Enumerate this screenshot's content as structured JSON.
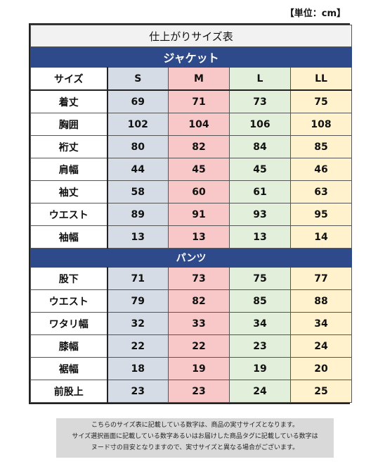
{
  "unit_label": "【単位：cm】",
  "title": "仕上がりサイズ表",
  "jacket": {
    "section_label": "ジャケット",
    "header": [
      "サイズ",
      "S",
      "M",
      "L",
      "LL"
    ],
    "rows": [
      {
        "label": "着丈",
        "values": [
          "69",
          "71",
          "73",
          "75"
        ]
      },
      {
        "label": "胸囲",
        "values": [
          "102",
          "104",
          "106",
          "108"
        ]
      },
      {
        "label": "裄丈",
        "values": [
          "80",
          "82",
          "84",
          "85"
        ]
      },
      {
        "label": "肩幅",
        "values": [
          "44",
          "45",
          "45",
          "46"
        ]
      },
      {
        "label": "袖丈",
        "values": [
          "58",
          "60",
          "61",
          "63"
        ]
      },
      {
        "label": "ウエスト",
        "values": [
          "89",
          "91",
          "93",
          "95"
        ]
      },
      {
        "label": "袖幅",
        "values": [
          "13",
          "13",
          "13",
          "14"
        ]
      }
    ]
  },
  "pants": {
    "section_label": "パンツ",
    "rows": [
      {
        "label": "股下",
        "values": [
          "71",
          "73",
          "75",
          "77"
        ]
      },
      {
        "label": "ウエスト",
        "values": [
          "79",
          "82",
          "85",
          "88"
        ]
      },
      {
        "label": "ワタリ幅",
        "values": [
          "32",
          "33",
          "34",
          "34"
        ]
      },
      {
        "label": "膝幅",
        "values": [
          "22",
          "22",
          "23",
          "24"
        ]
      },
      {
        "label": "裾幅",
        "values": [
          "18",
          "19",
          "19",
          "20"
        ]
      },
      {
        "label": "前股上",
        "values": [
          "23",
          "23",
          "24",
          "25"
        ]
      }
    ]
  },
  "note_lines": [
    "こちらのサイズ表に記載している数字は、商品の実寸サイズとなります。",
    "サイズ選択画面に記載している数字あるいはお届けした商品タグに記載している数字は",
    "ヌード寸の目安となりますので、実寸サイズと異なる場合がございます。"
  ],
  "colors": {
    "section_bg": "#2e4a8b",
    "S": "#d6dce5",
    "M": "#f8c7c7",
    "L": "#e2efda",
    "LL": "#fff2cc"
  }
}
